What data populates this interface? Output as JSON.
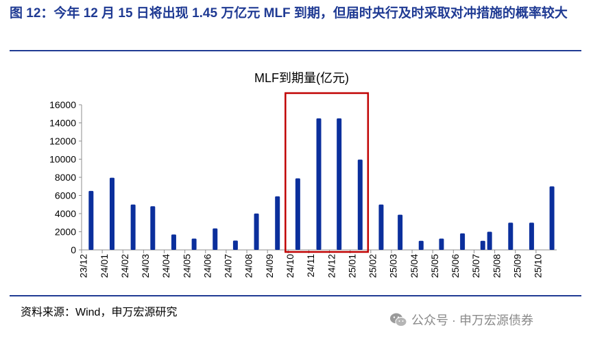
{
  "figure": {
    "title": "图 12：今年 12 月 15 日将出现 1.45 万亿元 MLF 到期，但届时央行及时采取对冲措施的概率较大",
    "source": "资料来源：Wind，申万宏源研究",
    "watermark": "公众号 · 申万宏源债券"
  },
  "chart_data": {
    "type": "bar",
    "title": "MLF到期量(亿元)",
    "xlabel": "",
    "ylabel": "",
    "ylim": [
      0,
      16000
    ],
    "yticks": [
      0,
      2000,
      4000,
      6000,
      8000,
      10000,
      12000,
      14000,
      16000
    ],
    "grid": false,
    "legend": "none",
    "categories": [
      "23/12",
      "24/01",
      "24/02",
      "24/03",
      "24/04",
      "24/05",
      "24/06",
      "24/07",
      "24/08",
      "24/09",
      "24/10",
      "24/11",
      "24/12",
      "25/01",
      "25/02",
      "25/03",
      "25/04",
      "25/05",
      "25/06",
      "25/07",
      "25/08",
      "25/09",
      "25/10"
    ],
    "bar_values": [
      {
        "date": "2023-12-15",
        "value": 6500
      },
      {
        "date": "2024-01-15",
        "value": 7950
      },
      {
        "date": "2024-02-15",
        "value": 5000
      },
      {
        "date": "2024-03-15",
        "value": 4810
      },
      {
        "date": "2024-04-15",
        "value": 1700
      },
      {
        "date": "2024-05-15",
        "value": 1250
      },
      {
        "date": "2024-06-15",
        "value": 2370
      },
      {
        "date": "2024-07-15",
        "value": 1030
      },
      {
        "date": "2024-08-15",
        "value": 4010
      },
      {
        "date": "2024-09-15",
        "value": 5910
      },
      {
        "date": "2024-10-15",
        "value": 7890
      },
      {
        "date": "2024-11-15",
        "value": 14500
      },
      {
        "date": "2024-12-15",
        "value": 14500
      },
      {
        "date": "2025-01-15",
        "value": 9950
      },
      {
        "date": "2025-02-15",
        "value": 5000
      },
      {
        "date": "2025-03-15",
        "value": 3880
      },
      {
        "date": "2025-04-15",
        "value": 1000
      },
      {
        "date": "2025-05-15",
        "value": 1250
      },
      {
        "date": "2025-06-15",
        "value": 1820
      },
      {
        "date": "2025-07-15",
        "value": 1000
      },
      {
        "date": "2025-07-25",
        "value": 2000
      },
      {
        "date": "2025-08-25",
        "value": 3000
      },
      {
        "date": "2025-09-25",
        "value": 3000
      },
      {
        "date": "2025-10-25",
        "value": 7000
      }
    ],
    "highlight": {
      "from": "24/10",
      "to": "25/01",
      "color": "#c00000"
    },
    "colors": {
      "bar": "#0b2f9c",
      "title_text": "#1f3a93",
      "rule": "#1f3a93"
    }
  }
}
